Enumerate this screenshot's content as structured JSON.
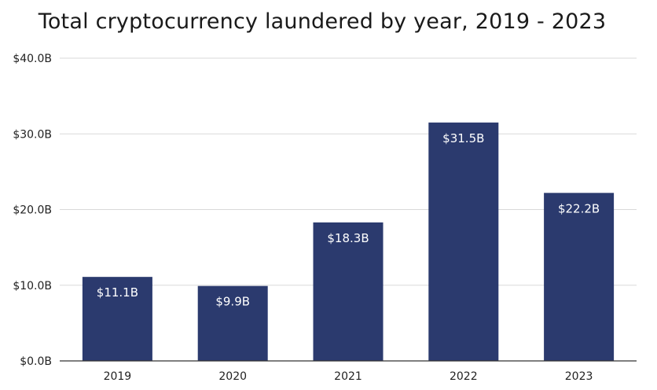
{
  "chart_data": {
    "type": "bar",
    "title": "Total cryptocurrency laundered by year, 2019 - 2023",
    "xlabel": "",
    "ylabel": "",
    "categories": [
      "2019",
      "2020",
      "2021",
      "2022",
      "2023"
    ],
    "values": [
      11.1,
      9.9,
      18.3,
      31.5,
      22.2
    ],
    "data_labels": [
      "$11.1B",
      "$9.9B",
      "$18.3B",
      "$31.5B",
      "$22.2B"
    ],
    "ylim": [
      0,
      40
    ],
    "yticks": [
      0,
      10,
      20,
      30,
      40
    ],
    "ytick_labels": [
      "$0.0B",
      "$10.0B",
      "$20.0B",
      "$30.0B",
      "$40.0B"
    ],
    "grid": true,
    "legend": "none",
    "colors": {
      "bar": "#2b3a6e",
      "grid": "#d9d9d9",
      "axis": "#333333"
    }
  }
}
